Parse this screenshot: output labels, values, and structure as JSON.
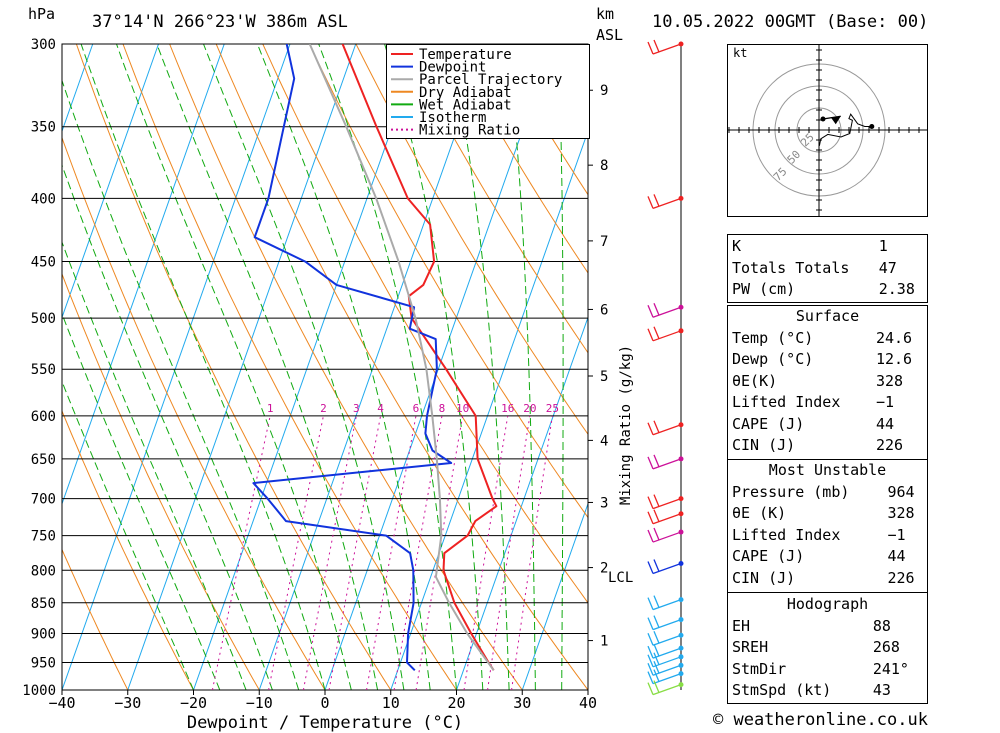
{
  "header": {
    "pressure_unit": "hPa",
    "location": "37°14'N 266°23'W 386m ASL",
    "height_unit_1": "km",
    "height_unit_2": "ASL",
    "datetime": "10.05.2022 00GMT (Base: 00)"
  },
  "footer": {
    "copyright": "© weatheronline.co.uk"
  },
  "chart_data": {
    "type": "line",
    "title": "37°14'N 266°23'W 386m ASL",
    "xlabel": "Dewpoint / Temperature (°C)",
    "ylabel": "hPa",
    "xlim": [
      -40,
      40
    ],
    "ylim": [
      1000,
      300
    ],
    "x_ticks": [
      "−40",
      "−30",
      "−20",
      "−10",
      "0",
      "10",
      "20",
      "30",
      "40"
    ],
    "pressure_levels": [
      300,
      350,
      400,
      450,
      500,
      550,
      600,
      650,
      700,
      750,
      800,
      850,
      900,
      950,
      1000
    ],
    "height_ticks": [
      {
        "km": "1",
        "p": 912
      },
      {
        "km": "2",
        "p": 796
      },
      {
        "km": "3",
        "p": 705
      },
      {
        "km": "4",
        "p": 628
      },
      {
        "km": "5",
        "p": 557
      },
      {
        "km": "6",
        "p": 492
      },
      {
        "km": "7",
        "p": 433
      },
      {
        "km": "8",
        "p": 376
      },
      {
        "km": "9",
        "p": 327
      }
    ],
    "lcl_label": "LCL",
    "lcl_pressure": 810,
    "mixing_ratio_axis_label": "Mixing Ratio (g/kg)",
    "mixing_ratio_labels": [
      "1",
      "2",
      "3",
      "4",
      "6",
      "8",
      "10",
      "16",
      "20",
      "25"
    ],
    "legend": [
      {
        "name": "Temperature",
        "color": "#ee2222",
        "style": "solid"
      },
      {
        "name": "Dewpoint",
        "color": "#1133dd",
        "style": "solid"
      },
      {
        "name": "Parcel Trajectory",
        "color": "#aaaaaa",
        "style": "solid"
      },
      {
        "name": "Dry Adiabat",
        "color": "#ee8822",
        "style": "solid"
      },
      {
        "name": "Wet Adiabat",
        "color": "#11aa11",
        "style": "solid"
      },
      {
        "name": "Isotherm",
        "color": "#22aaee",
        "style": "solid"
      },
      {
        "name": "Mixing Ratio",
        "color": "#cc1199",
        "style": "dotted"
      }
    ],
    "series": [
      {
        "name": "Temperature",
        "points": [
          [
            964,
            24.6
          ],
          [
            950,
            23.4
          ],
          [
            900,
            19.2
          ],
          [
            850,
            15.0
          ],
          [
            800,
            11.6
          ],
          [
            775,
            10.8
          ],
          [
            750,
            13.4
          ],
          [
            730,
            13.8
          ],
          [
            710,
            16.2
          ],
          [
            700,
            15.2
          ],
          [
            650,
            10.8
          ],
          [
            600,
            8.2
          ],
          [
            550,
            1.2
          ],
          [
            500,
            -6.8
          ],
          [
            480,
            -8.4
          ],
          [
            470,
            -6.8
          ],
          [
            450,
            -6.4
          ],
          [
            420,
            -9.0
          ],
          [
            400,
            -13.8
          ],
          [
            350,
            -22.4
          ],
          [
            300,
            -32.0
          ]
        ]
      },
      {
        "name": "Dewpoint",
        "points": [
          [
            964,
            12.6
          ],
          [
            950,
            11.0
          ],
          [
            900,
            9.6
          ],
          [
            850,
            8.8
          ],
          [
            800,
            7.0
          ],
          [
            775,
            5.6
          ],
          [
            750,
            1.0
          ],
          [
            730,
            -15.0
          ],
          [
            700,
            -19.0
          ],
          [
            680,
            -22.0
          ],
          [
            655,
            7.0
          ],
          [
            640,
            3.5
          ],
          [
            620,
            1.5
          ],
          [
            600,
            0.8
          ],
          [
            550,
            -0.2
          ],
          [
            520,
            -2.0
          ],
          [
            510,
            -6.5
          ],
          [
            490,
            -7.0
          ],
          [
            470,
            -20.0
          ],
          [
            450,
            -26.0
          ],
          [
            430,
            -35.0
          ],
          [
            400,
            -35.0
          ],
          [
            350,
            -36.5
          ],
          [
            320,
            -37.5
          ],
          [
            300,
            -40.5
          ]
        ]
      },
      {
        "name": "Parcel Trajectory",
        "points": [
          [
            964,
            24.6
          ],
          [
            900,
            18.6
          ],
          [
            850,
            14.2
          ],
          [
            810,
            10.8
          ],
          [
            750,
            9.4
          ],
          [
            700,
            7.2
          ],
          [
            650,
            4.6
          ],
          [
            600,
            1.6
          ],
          [
            550,
            -1.8
          ],
          [
            500,
            -6.2
          ],
          [
            450,
            -11.8
          ],
          [
            400,
            -18.6
          ],
          [
            350,
            -27.0
          ],
          [
            300,
            -37.0
          ]
        ]
      }
    ]
  },
  "hodograph": {
    "unit_label": "kt",
    "ring_labels": [
      "25",
      "50",
      "75"
    ],
    "points": [
      [
        0.4,
        -18
      ],
      [
        2,
        -10
      ],
      [
        10,
        -5
      ],
      [
        25,
        -8
      ],
      [
        35,
        -4
      ],
      [
        38,
        11
      ],
      [
        34,
        13
      ],
      [
        36,
        18
      ],
      [
        44,
        7
      ],
      [
        52,
        4
      ],
      [
        60,
        4
      ]
    ],
    "storm_motion_vector": [
      38,
      -24
    ]
  },
  "indices": {
    "rows": [
      {
        "label": "K",
        "value": "1"
      },
      {
        "label": "Totals Totals",
        "value": "47"
      },
      {
        "label": "PW (cm)",
        "value": "2.38"
      }
    ],
    "surface": {
      "title": "Surface",
      "rows": [
        {
          "label": "Temp (°C)",
          "value": "24.6"
        },
        {
          "label": "Dewp (°C)",
          "value": "12.6"
        },
        {
          "label": "θE(K)",
          "value": "328"
        },
        {
          "label": "Lifted Index",
          "value": "−1"
        },
        {
          "label": "CAPE (J)",
          "value": "44"
        },
        {
          "label": "CIN (J)",
          "value": "226"
        }
      ]
    },
    "most_unstable": {
      "title": "Most Unstable",
      "rows": [
        {
          "label": "Pressure (mb)",
          "value": "964"
        },
        {
          "label": "θE (K)",
          "value": "328"
        },
        {
          "label": "Lifted Index",
          "value": "−1"
        },
        {
          "label": "CAPE (J)",
          "value": "44"
        },
        {
          "label": "CIN (J)",
          "value": "226"
        }
      ]
    },
    "hodograph_params": {
      "title": "Hodograph",
      "rows": [
        {
          "label": "EH",
          "value": "88"
        },
        {
          "label": "SREH",
          "value": "268"
        },
        {
          "label": "StmDir",
          "value": "241°"
        },
        {
          "label": "StmSpd (kt)",
          "value": "43"
        }
      ]
    }
  },
  "wind_barbs": [
    {
      "p": 300,
      "color": "#ee2222"
    },
    {
      "p": 400,
      "color": "#ee2222"
    },
    {
      "p": 490,
      "color": "#cc1199"
    },
    {
      "p": 512,
      "color": "#ee2222"
    },
    {
      "p": 610,
      "color": "#ee2222"
    },
    {
      "p": 650,
      "color": "#cc1199"
    },
    {
      "p": 700,
      "color": "#ee2222"
    },
    {
      "p": 720,
      "color": "#ee2222"
    },
    {
      "p": 745,
      "color": "#cc1199"
    },
    {
      "p": 790,
      "color": "#1133dd"
    },
    {
      "p": 845,
      "color": "#22aaee"
    },
    {
      "p": 877,
      "color": "#22aaee"
    },
    {
      "p": 903,
      "color": "#22aaee"
    },
    {
      "p": 925,
      "color": "#22aaee"
    },
    {
      "p": 940,
      "color": "#22aaee"
    },
    {
      "p": 955,
      "color": "#22aaee"
    },
    {
      "p": 970,
      "color": "#22aaee"
    },
    {
      "p": 990,
      "color": "#88dd44"
    }
  ]
}
